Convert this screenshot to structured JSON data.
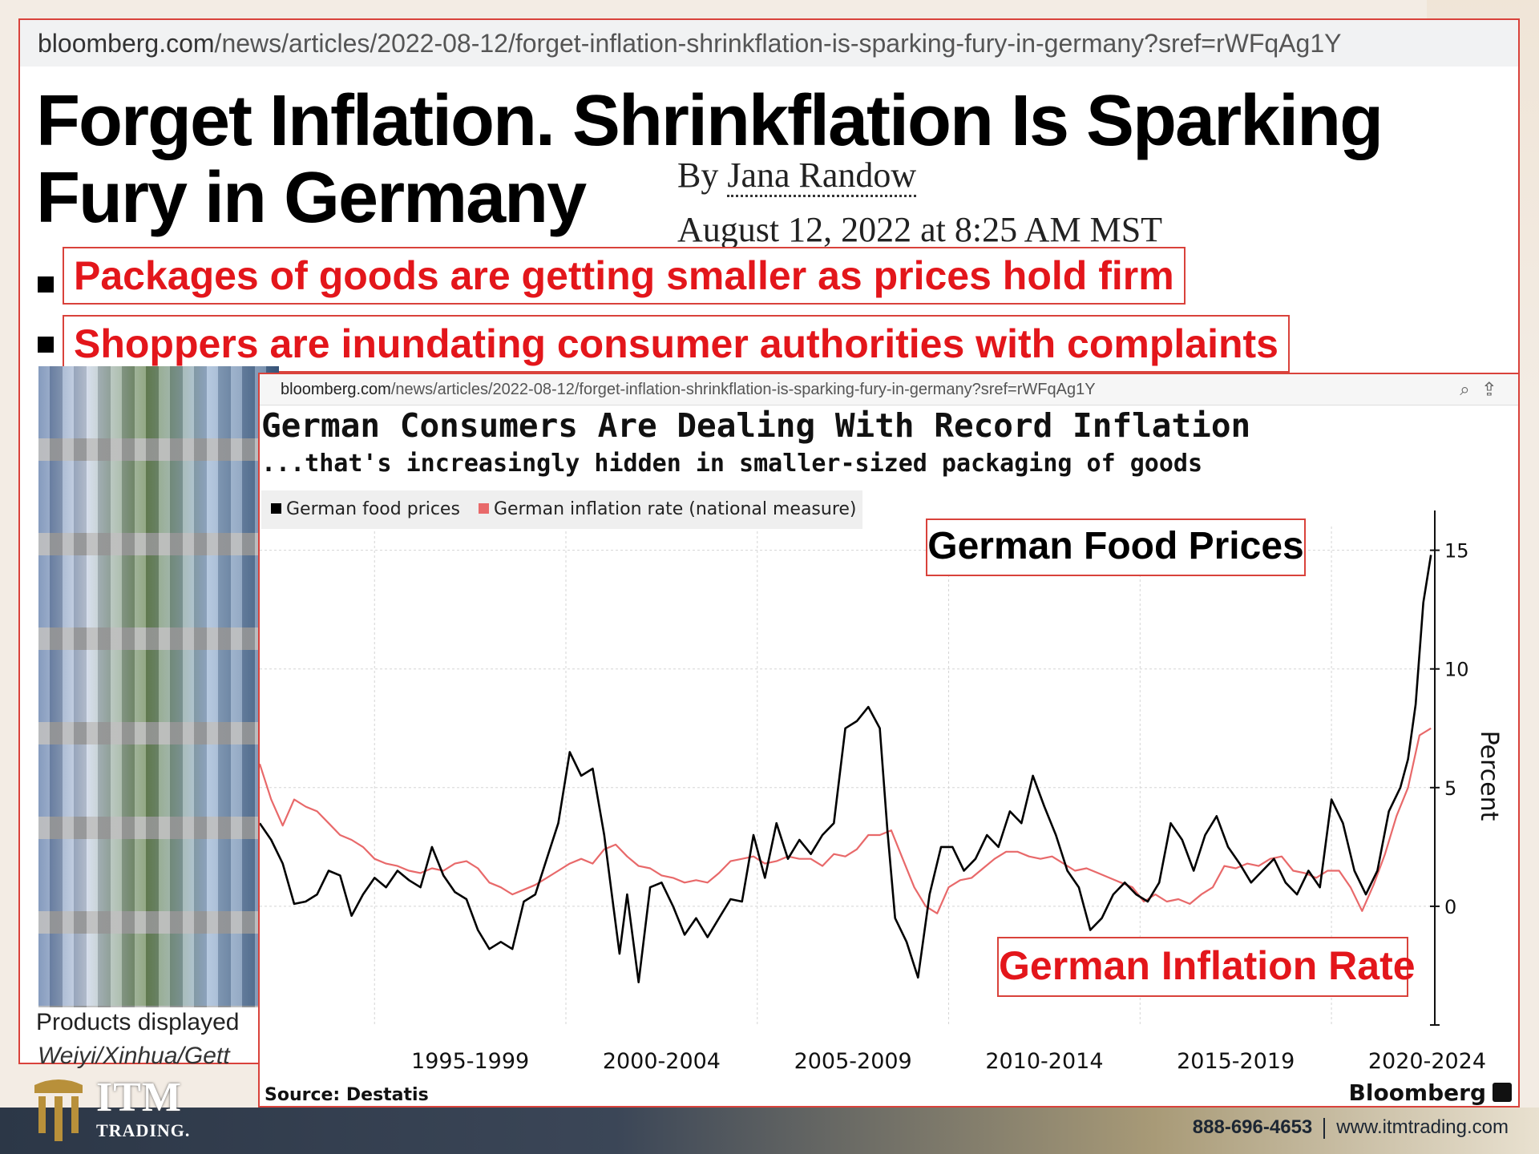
{
  "article": {
    "url_domain": "bloomberg.com",
    "url_path": "/news/articles/2022-08-12/forget-inflation-shrinkflation-is-sparking-fury-in-germany?sref=rWFqAg1Y",
    "headline_line1": "Forget Inflation. Shrinkflation Is Sparking",
    "headline_line2": "Fury in Germany",
    "byline_prefix": "By ",
    "author": "Jana Randow",
    "date": "August 12, 2022 at 8:25 AM MST",
    "bullet1": "Packages of goods are getting smaller as prices hold firm",
    "bullet2": "Shoppers are inundating consumer authorities with complaints",
    "caption_line1": "Products displayed",
    "caption_line2": "Weiyi/Xinhua/Gett"
  },
  "chart_panel": {
    "url_domain": "bloomberg.com",
    "url_path": "/news/articles/2022-08-12/forget-inflation-shrinkflation-is-sparking-fury-in-germany?sref=rWFqAg1Y",
    "icons": [
      "zoom-icon",
      "share-icon"
    ],
    "source": "Source: Destatis",
    "brand": "Bloomberg",
    "annotation_food": "German Food Prices",
    "annotation_inflation": "German Inflation Rate"
  },
  "chart_data": {
    "type": "line",
    "title": "German Consumers Are Dealing With Record Inflation",
    "subtitle": "...that's increasingly hidden in smaller-sized packaging of goods",
    "ylabel": "Percent",
    "ylim": [
      -5,
      16
    ],
    "yticks": [
      0,
      5,
      10,
      15
    ],
    "xlim": [
      1992.0,
      2022.7
    ],
    "xtick_labels": [
      "1995-1999",
      "2000-2004",
      "2005-2009",
      "2010-2014",
      "2015-2019",
      "2020-2024"
    ],
    "grid": true,
    "legend_position": "top-left",
    "series": [
      {
        "name": "German food prices",
        "color": "#000000",
        "x": [
          1992.0,
          1992.3,
          1992.6,
          1992.9,
          1993.2,
          1993.5,
          1993.8,
          1994.1,
          1994.4,
          1994.7,
          1995.0,
          1995.3,
          1995.6,
          1995.9,
          1996.2,
          1996.5,
          1996.8,
          1997.1,
          1997.4,
          1997.7,
          1998.0,
          1998.3,
          1998.6,
          1998.9,
          1999.2,
          1999.5,
          1999.8,
          2000.1,
          2000.4,
          2000.7,
          2001.0,
          2001.2,
          2001.4,
          2001.6,
          2001.9,
          2002.2,
          2002.5,
          2002.8,
          2003.1,
          2003.4,
          2003.7,
          2004.0,
          2004.3,
          2004.6,
          2004.9,
          2005.2,
          2005.5,
          2005.8,
          2006.1,
          2006.4,
          2006.7,
          2007.0,
          2007.3,
          2007.6,
          2007.9,
          2008.2,
          2008.4,
          2008.6,
          2008.9,
          2009.2,
          2009.5,
          2009.8,
          2010.1,
          2010.4,
          2010.7,
          2011.0,
          2011.3,
          2011.6,
          2011.9,
          2012.2,
          2012.5,
          2012.8,
          2013.1,
          2013.4,
          2013.7,
          2014.0,
          2014.3,
          2014.6,
          2014.9,
          2015.2,
          2015.5,
          2015.8,
          2016.1,
          2016.4,
          2016.7,
          2017.0,
          2017.3,
          2017.6,
          2017.9,
          2018.2,
          2018.5,
          2018.8,
          2019.1,
          2019.4,
          2019.7,
          2020.0,
          2020.3,
          2020.6,
          2020.9,
          2021.2,
          2021.5,
          2021.8,
          2022.0,
          2022.2,
          2022.4,
          2022.6
        ],
        "values": [
          3.5,
          2.8,
          1.8,
          0.1,
          0.2,
          0.5,
          1.5,
          1.3,
          -0.4,
          0.5,
          1.2,
          0.8,
          1.5,
          1.1,
          0.8,
          2.5,
          1.3,
          0.6,
          0.3,
          -1.0,
          -1.8,
          -1.5,
          -1.8,
          0.2,
          0.5,
          2.0,
          3.5,
          6.5,
          5.5,
          5.8,
          3.0,
          0.5,
          -2.0,
          0.5,
          -3.2,
          0.8,
          1.0,
          0.0,
          -1.2,
          -0.5,
          -1.3,
          -0.5,
          0.3,
          0.2,
          3.0,
          1.2,
          3.5,
          2.0,
          2.8,
          2.2,
          3.0,
          3.5,
          7.5,
          7.8,
          8.4,
          7.5,
          3.2,
          -0.5,
          -1.5,
          -3.0,
          0.5,
          2.5,
          2.5,
          1.5,
          2.0,
          3.0,
          2.5,
          4.0,
          3.5,
          5.5,
          4.2,
          3.0,
          1.5,
          0.8,
          -1.0,
          -0.5,
          0.5,
          1.0,
          0.5,
          0.2,
          1.0,
          3.5,
          2.8,
          1.5,
          3.0,
          3.8,
          2.5,
          1.8,
          1.0,
          1.5,
          2.0,
          1.0,
          0.5,
          1.5,
          0.8,
          4.5,
          3.5,
          1.5,
          0.5,
          1.5,
          4.0,
          5.0,
          6.2,
          8.5,
          12.8,
          14.8
        ]
      },
      {
        "name": "German inflation rate (national measure)",
        "color": "#e8696a",
        "x": [
          1992.0,
          1992.3,
          1992.6,
          1992.9,
          1993.2,
          1993.5,
          1993.8,
          1994.1,
          1994.4,
          1994.7,
          1995.0,
          1995.3,
          1995.6,
          1995.9,
          1996.2,
          1996.5,
          1996.8,
          1997.1,
          1997.4,
          1997.7,
          1998.0,
          1998.3,
          1998.6,
          1998.9,
          1999.2,
          1999.5,
          1999.8,
          2000.1,
          2000.4,
          2000.7,
          2001.0,
          2001.3,
          2001.6,
          2001.9,
          2002.2,
          2002.5,
          2002.8,
          2003.1,
          2003.4,
          2003.7,
          2004.0,
          2004.3,
          2004.6,
          2004.9,
          2005.2,
          2005.5,
          2005.8,
          2006.1,
          2006.4,
          2006.7,
          2007.0,
          2007.3,
          2007.6,
          2007.9,
          2008.2,
          2008.5,
          2008.8,
          2009.1,
          2009.4,
          2009.7,
          2010.0,
          2010.3,
          2010.6,
          2010.9,
          2011.2,
          2011.5,
          2011.8,
          2012.1,
          2012.4,
          2012.7,
          2013.0,
          2013.3,
          2013.6,
          2013.9,
          2014.2,
          2014.5,
          2014.8,
          2015.1,
          2015.4,
          2015.7,
          2016.0,
          2016.3,
          2016.6,
          2016.9,
          2017.2,
          2017.5,
          2017.8,
          2018.1,
          2018.4,
          2018.7,
          2019.0,
          2019.3,
          2019.6,
          2019.9,
          2020.2,
          2020.5,
          2020.8,
          2021.1,
          2021.4,
          2021.7,
          2022.0,
          2022.3,
          2022.6
        ],
        "values": [
          6.0,
          4.5,
          3.4,
          4.5,
          4.2,
          4.0,
          3.5,
          3.0,
          2.8,
          2.5,
          2.0,
          1.8,
          1.7,
          1.5,
          1.4,
          1.6,
          1.5,
          1.8,
          1.9,
          1.6,
          1.0,
          0.8,
          0.5,
          0.7,
          0.9,
          1.2,
          1.5,
          1.8,
          2.0,
          1.8,
          2.4,
          2.6,
          2.1,
          1.7,
          1.6,
          1.3,
          1.2,
          1.0,
          1.1,
          1.0,
          1.4,
          1.9,
          2.0,
          2.1,
          1.8,
          1.9,
          2.1,
          2.0,
          2.0,
          1.7,
          2.2,
          2.1,
          2.4,
          3.0,
          3.0,
          3.2,
          2.0,
          0.8,
          0.0,
          -0.3,
          0.8,
          1.1,
          1.2,
          1.6,
          2.0,
          2.3,
          2.3,
          2.1,
          2.0,
          2.1,
          1.8,
          1.5,
          1.6,
          1.4,
          1.2,
          1.0,
          0.8,
          0.2,
          0.5,
          0.2,
          0.3,
          0.1,
          0.5,
          0.8,
          1.7,
          1.6,
          1.8,
          1.7,
          2.0,
          2.1,
          1.5,
          1.4,
          1.2,
          1.5,
          1.5,
          0.8,
          -0.2,
          0.9,
          2.2,
          3.8,
          5.0,
          7.2,
          7.5
        ]
      }
    ]
  },
  "footer": {
    "brand_line1": "ITM",
    "brand_line2": "TRADING.",
    "phone": "888-696-4653",
    "website": "www.itmtrading.com"
  }
}
